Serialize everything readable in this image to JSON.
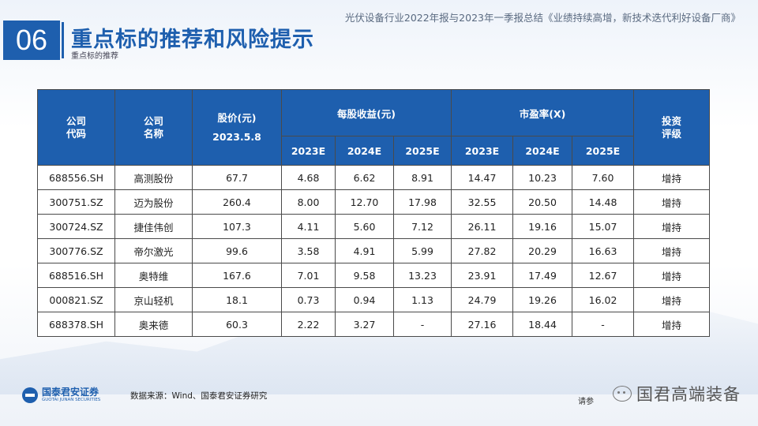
{
  "header": {
    "report_title": "光伏设备行业2022年报与2023年一季报总结《业绩持续高增，新技术迭代利好设备厂商》",
    "section_number": "06",
    "section_title": "重点标的推荐和风险提示",
    "section_subtitle": "重点标的推荐"
  },
  "table": {
    "headers": {
      "code": [
        "公司",
        "代码"
      ],
      "name": [
        "公司",
        "名称"
      ],
      "price": [
        "股价(元)",
        "2023.5.8"
      ],
      "eps": "每股收益(元)",
      "pe": "市盈率(X)",
      "rating": [
        "投资",
        "评级"
      ],
      "years": [
        "2023E",
        "2024E",
        "2025E"
      ]
    },
    "rows": [
      [
        "688556.SH",
        "高测股份",
        "67.7",
        "4.68",
        "6.62",
        "8.91",
        "14.47",
        "10.23",
        "7.60",
        "增持"
      ],
      [
        "300751.SZ",
        "迈为股份",
        "260.4",
        "8.00",
        "12.70",
        "17.98",
        "32.55",
        "20.50",
        "14.48",
        "增持"
      ],
      [
        "300724.SZ",
        "捷佳伟创",
        "107.3",
        "4.11",
        "5.60",
        "7.12",
        "26.11",
        "19.16",
        "15.07",
        "增持"
      ],
      [
        "300776.SZ",
        "帝尔激光",
        "99.6",
        "3.58",
        "4.91",
        "5.99",
        "27.82",
        "20.29",
        "16.63",
        "增持"
      ],
      [
        "688516.SH",
        "奥特维",
        "167.6",
        "7.01",
        "9.58",
        "13.23",
        "23.91",
        "17.49",
        "12.67",
        "增持"
      ],
      [
        "000821.SZ",
        "京山轻机",
        "18.1",
        "0.73",
        "0.94",
        "1.13",
        "24.79",
        "19.26",
        "16.02",
        "增持"
      ],
      [
        "688378.SH",
        "奥来德",
        "60.3",
        "2.22",
        "3.27",
        "-",
        "27.16",
        "18.44",
        "-",
        "增持"
      ]
    ]
  },
  "footer": {
    "logo_cn": "国泰君安证券",
    "logo_en": "GUOTAI JUNAN SECURITIES",
    "source": "数据来源：Wind、国泰君安证券研究",
    "hint": "请参",
    "wechat_name": "国君高端装备"
  },
  "colors": {
    "brand_blue": "#1e5fae"
  }
}
